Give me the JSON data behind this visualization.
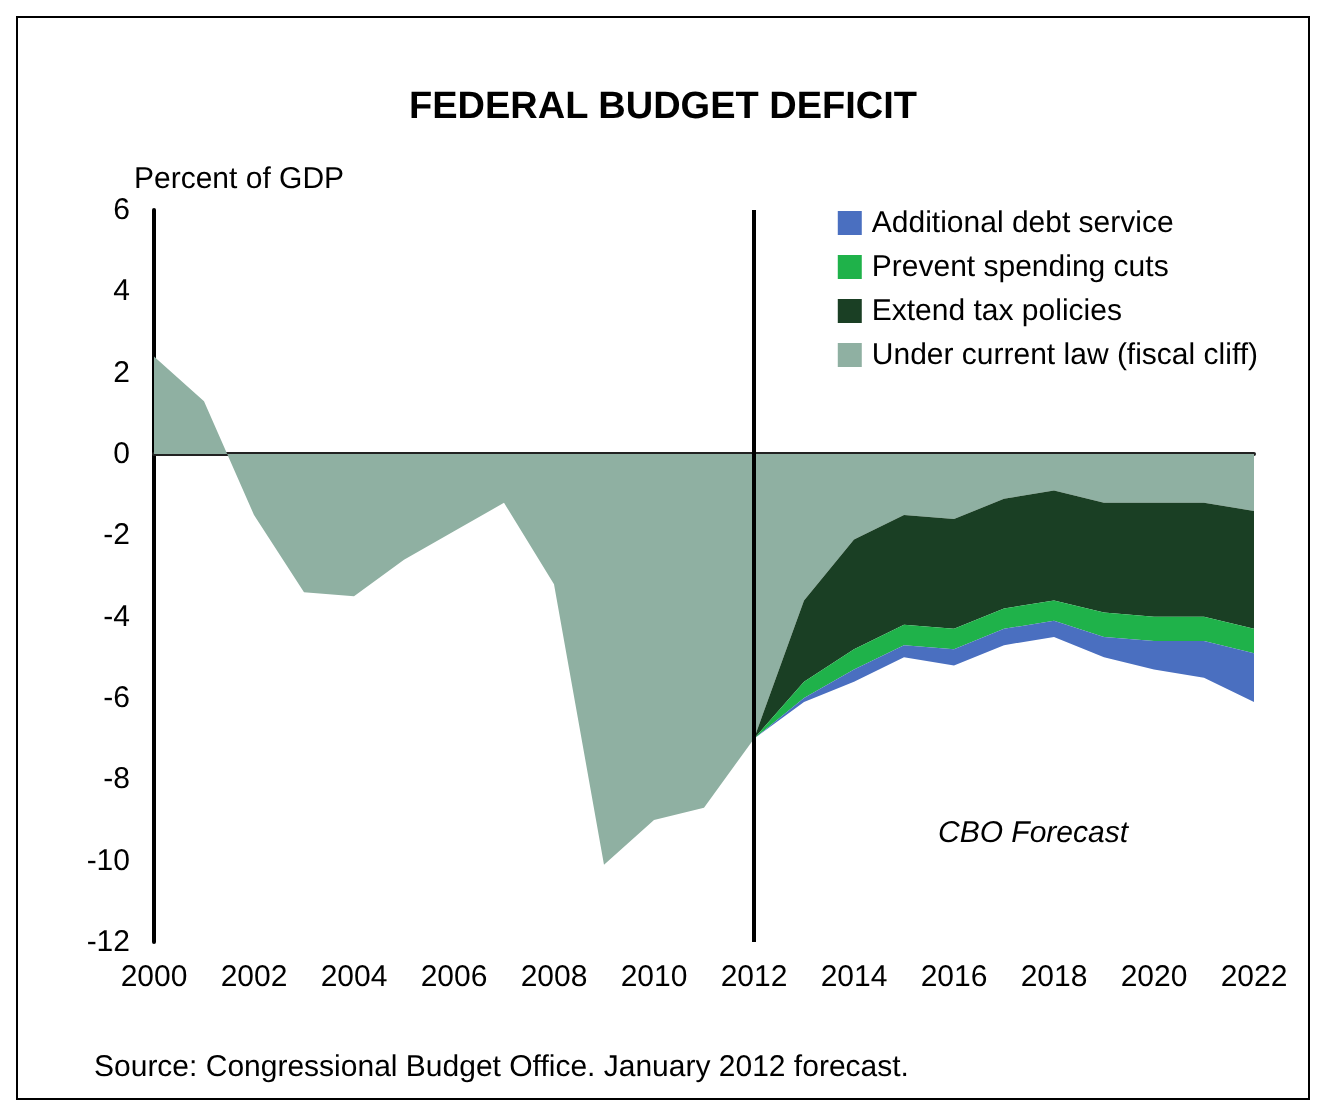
{
  "chart_data": {
    "type": "area",
    "title": "FEDERAL BUDGET DEFICIT",
    "ylabel": "Percent of GDP",
    "x": [
      2000,
      2001,
      2002,
      2003,
      2004,
      2005,
      2006,
      2007,
      2008,
      2009,
      2010,
      2011,
      2012,
      2013,
      2014,
      2015,
      2016,
      2017,
      2018,
      2019,
      2020,
      2021,
      2022
    ],
    "stacked": true,
    "series": [
      {
        "name": "Under current law (fiscal cliff)",
        "color": "#8fb0a2",
        "values": [
          2.4,
          1.3,
          -1.5,
          -3.4,
          -3.5,
          -2.6,
          -1.9,
          -1.2,
          -3.2,
          -10.1,
          -9.0,
          -8.7,
          -7.0,
          -3.6,
          -2.1,
          -1.5,
          -1.6,
          -1.1,
          -0.9,
          -1.2,
          -1.2,
          -1.2,
          -1.4
        ]
      },
      {
        "name": "Extend tax policies",
        "color": "#1a3f24",
        "values": [
          null,
          null,
          null,
          null,
          null,
          null,
          null,
          null,
          null,
          null,
          null,
          null,
          0,
          -2.0,
          -2.7,
          -2.7,
          -2.7,
          -2.7,
          -2.7,
          -2.7,
          -2.8,
          -2.8,
          -2.9
        ]
      },
      {
        "name": "Prevent spending cuts",
        "color": "#1fb24a",
        "values": [
          null,
          null,
          null,
          null,
          null,
          null,
          null,
          null,
          null,
          null,
          null,
          null,
          0,
          -0.4,
          -0.5,
          -0.5,
          -0.5,
          -0.5,
          -0.5,
          -0.6,
          -0.6,
          -0.6,
          -0.6
        ]
      },
      {
        "name": "Additional debt service",
        "color": "#4a6fc0",
        "values": [
          null,
          null,
          null,
          null,
          null,
          null,
          null,
          null,
          null,
          null,
          null,
          null,
          0,
          -0.1,
          -0.3,
          -0.3,
          -0.4,
          -0.4,
          -0.4,
          -0.5,
          -0.7,
          -0.9,
          -1.2
        ]
      }
    ],
    "xlim": [
      2000,
      2022
    ],
    "xticks": [
      2000,
      2002,
      2004,
      2006,
      2008,
      2010,
      2012,
      2014,
      2016,
      2018,
      2020,
      2022
    ],
    "ylim": [
      -12,
      6
    ],
    "yticks": [
      -12,
      -10,
      -8,
      -6,
      -4,
      -2,
      0,
      2,
      4,
      6
    ],
    "ref_lines": [
      {
        "axis": "x",
        "value": 2012,
        "color": "#000000"
      }
    ],
    "annotations": [
      "CBO Forecast",
      "Source: Congressional Budget Office. January 2012 forecast."
    ],
    "grid": false,
    "legend": "top right",
    "marker": "none"
  }
}
